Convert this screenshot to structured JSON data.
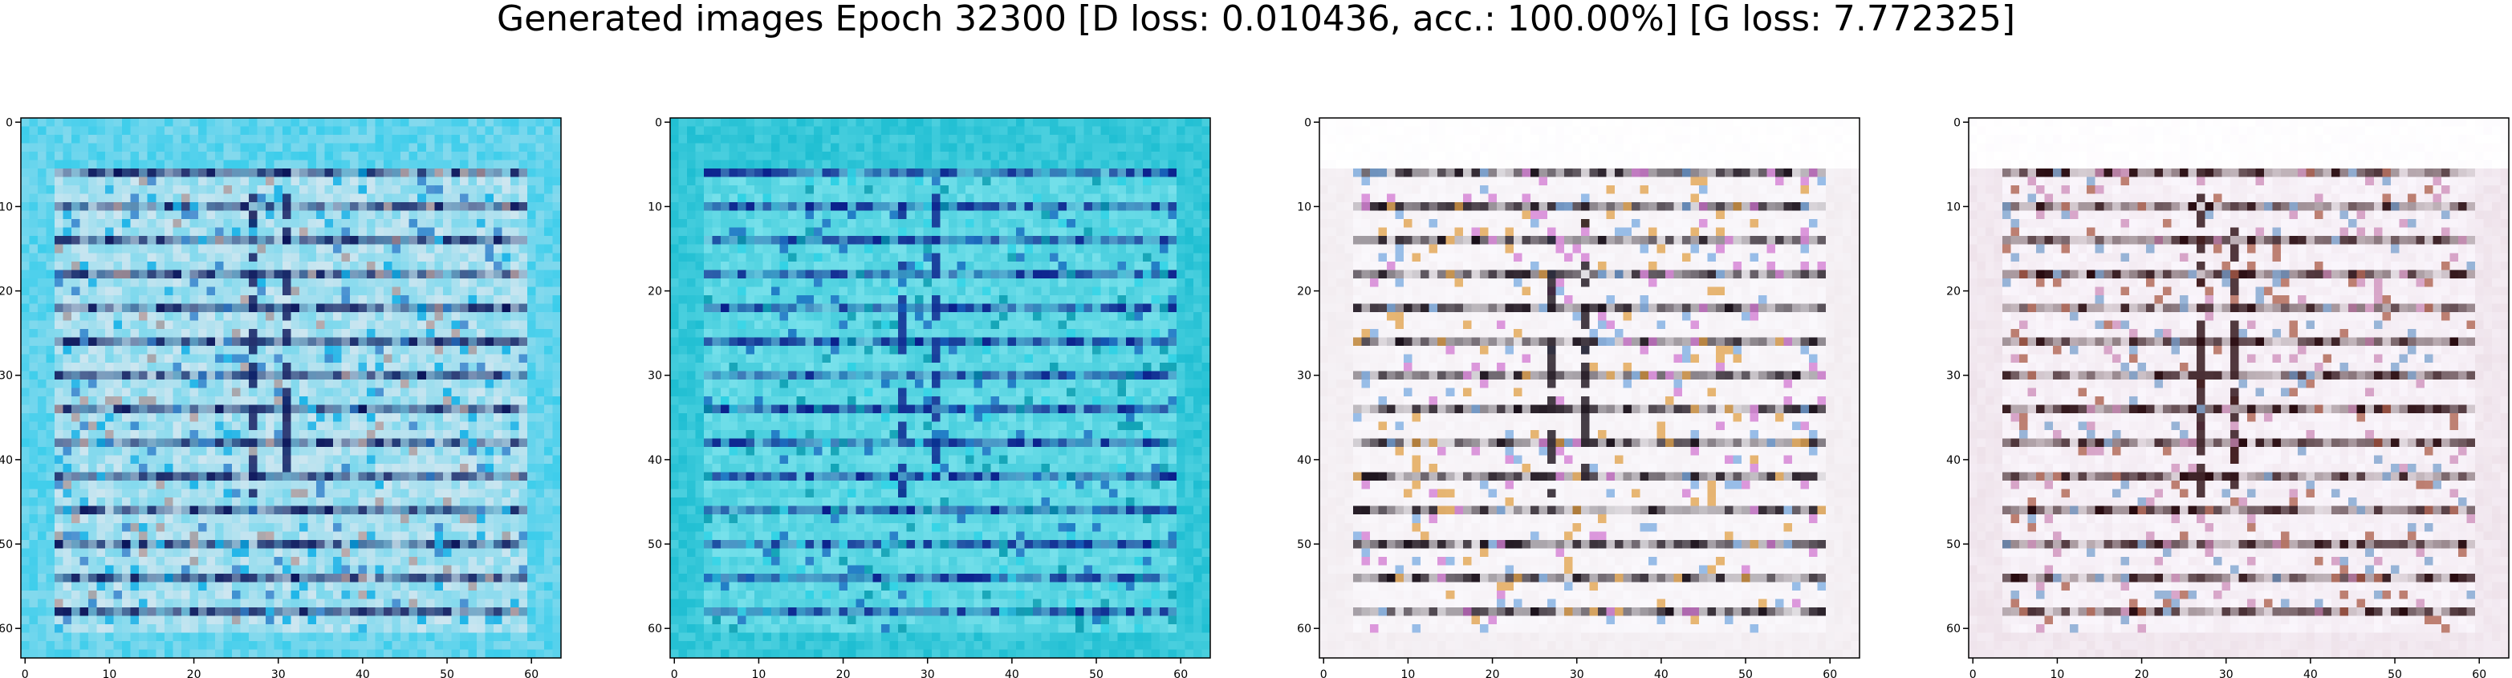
{
  "title": "Generated images Epoch 32300 [D loss: 0.010436, acc.: 100.00%] [G loss: 7.772325]",
  "chart_data": [
    {
      "type": "heatmap",
      "subtype": "image",
      "x_ticks": [
        0,
        10,
        20,
        30,
        40,
        50,
        60
      ],
      "y_ticks": [
        0,
        10,
        20,
        30,
        40,
        50,
        60
      ],
      "xlim": [
        -0.5,
        63.5
      ],
      "ylim": [
        63.5,
        -0.5
      ],
      "grid": false,
      "palette": "cyan"
    },
    {
      "type": "heatmap",
      "subtype": "image",
      "x_ticks": [
        0,
        10,
        20,
        30,
        40,
        50,
        60
      ],
      "y_ticks": [
        0,
        10,
        20,
        30,
        40,
        50,
        60
      ],
      "xlim": [
        -0.5,
        63.5
      ],
      "ylim": [
        63.5,
        -0.5
      ],
      "grid": false,
      "palette": "teal"
    },
    {
      "type": "heatmap",
      "subtype": "image",
      "x_ticks": [
        0,
        10,
        20,
        30,
        40,
        50,
        60
      ],
      "y_ticks": [
        0,
        10,
        20,
        30,
        40,
        50,
        60
      ],
      "xlim": [
        -0.5,
        63.5
      ],
      "ylim": [
        63.5,
        -0.5
      ],
      "grid": false,
      "palette": "pastel"
    },
    {
      "type": "heatmap",
      "subtype": "image",
      "x_ticks": [
        0,
        10,
        20,
        30,
        40,
        50,
        60
      ],
      "y_ticks": [
        0,
        10,
        20,
        30,
        40,
        50,
        60
      ],
      "xlim": [
        -0.5,
        63.5
      ],
      "ylim": [
        63.5,
        -0.5
      ],
      "grid": false,
      "palette": "pinkish"
    }
  ]
}
